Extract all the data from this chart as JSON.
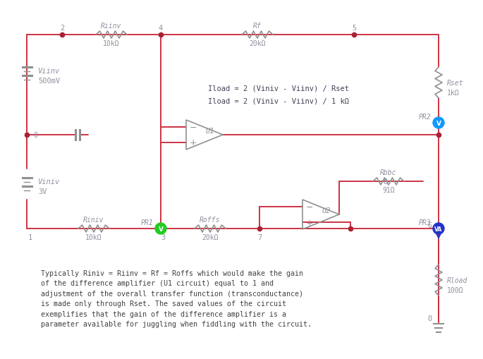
{
  "bg_color": "#ffffff",
  "wire_color": "#cc3344",
  "resistor_color": "#909090",
  "opamp_color": "#909090",
  "battery_color": "#909090",
  "node_color": "#aa2233",
  "probe_v_color": "#1199ff",
  "probe_va_color": "#2233cc",
  "gnd_color": "#909090",
  "label_color": "#9090a0",
  "formula_color": "#404055",
  "note_color": "#404040",
  "title_note": "Typically Riniv = Riinv = Rf = Roffs which would make the gain\nof the difference amplifier (U1 circuit) equal to 1 and\nadjustment of the overall transfer function (transconductance)\nis made only through Rset. The saved values of the circuit\nexemplifies that the gain of the difference amplifier is a\nparameter available for juggling when fiddling with the circuit.",
  "formula1": "Iload = 2 (Viniv - Viinv) / Rset",
  "formula2": "Iload = 2 (Viniv - Viinv) / 1 kΩ"
}
